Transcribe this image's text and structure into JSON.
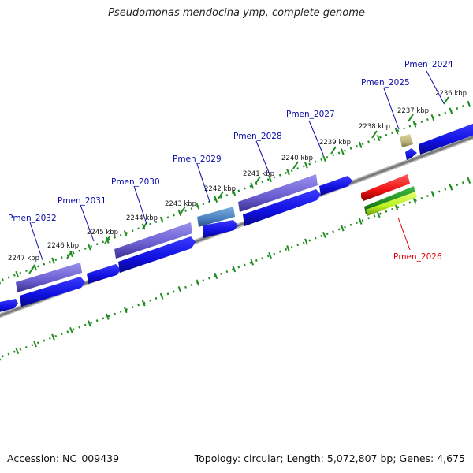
{
  "title": "Pseudomonas mendocina ymp, complete genome",
  "footer": {
    "accession": "Accession: NC_009439",
    "summary": "Topology: circular; Length: 5,072,807 bp; Genes: 4,675"
  },
  "colors": {
    "backbone": "#8a8a8a",
    "cds": "#1414e6",
    "cds_blue_alt": "#4a7fc0",
    "gene_purple": "#7a6fd6",
    "small_gene": "#b8b07a",
    "highlight_red": "#ee1111",
    "highlight_green": "#1f8c1f",
    "highlight_yellow": "#b8f020",
    "tick": "#1e8c1e",
    "label_blue": "#0a0aa8",
    "label_red": "#e00000"
  },
  "ticks": [
    "2236 kbp",
    "2237 kbp",
    "2238 kbp",
    "2239 kbp",
    "2240 kbp",
    "2241 kbp",
    "2242 kbp",
    "2243 kbp",
    "2244 kbp",
    "2245 kbp",
    "2246 kbp",
    "2247 kbp"
  ],
  "genes": [
    "Pmen_2024",
    "Pmen_2025",
    "Pmen_2026",
    "Pmen_2027",
    "Pmen_2028",
    "Pmen_2029",
    "Pmen_2030",
    "Pmen_2031",
    "Pmen_2032"
  ]
}
